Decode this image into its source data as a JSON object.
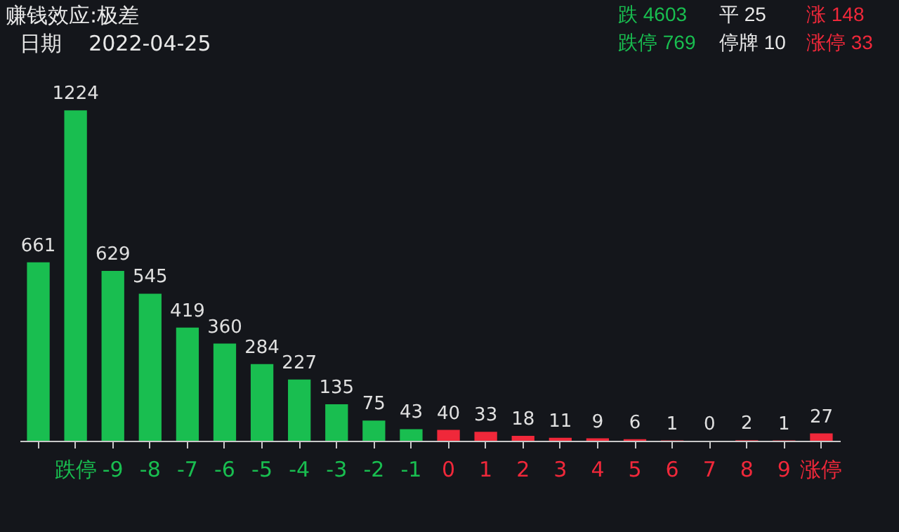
{
  "chart_data": {
    "type": "bar",
    "title": "赚钱效应:极差",
    "subtitle": "日期    2022-04-25",
    "annotations": [
      "跌 4603",
      "平 25",
      "涨 148",
      "跌停 769",
      "停牌 10",
      "涨停 33"
    ],
    "categories": [
      null,
      "跌停",
      "-9",
      "-8",
      "-7",
      "-6",
      "-5",
      "-4",
      "-3",
      "-2",
      "-1",
      "0",
      "1",
      "2",
      "3",
      "4",
      "5",
      "6",
      "7",
      "8",
      "9",
      "涨停"
    ],
    "values": [
      661,
      1224,
      629,
      545,
      419,
      360,
      284,
      227,
      135,
      75,
      43,
      40,
      33,
      18,
      11,
      9,
      6,
      1,
      0,
      2,
      1,
      27
    ],
    "colors": [
      "#19be50",
      "#19be50",
      "#19be50",
      "#19be50",
      "#19be50",
      "#19be50",
      "#19be50",
      "#19be50",
      "#19be50",
      "#19be50",
      "#19be50",
      "#f0283a",
      "#f0283a",
      "#f0283a",
      "#f0283a",
      "#f0283a",
      "#f0283a",
      "#f0283a",
      "#f0283a",
      "#f0283a",
      "#f0283a",
      "#f0283a"
    ],
    "data_labels": true
  }
}
